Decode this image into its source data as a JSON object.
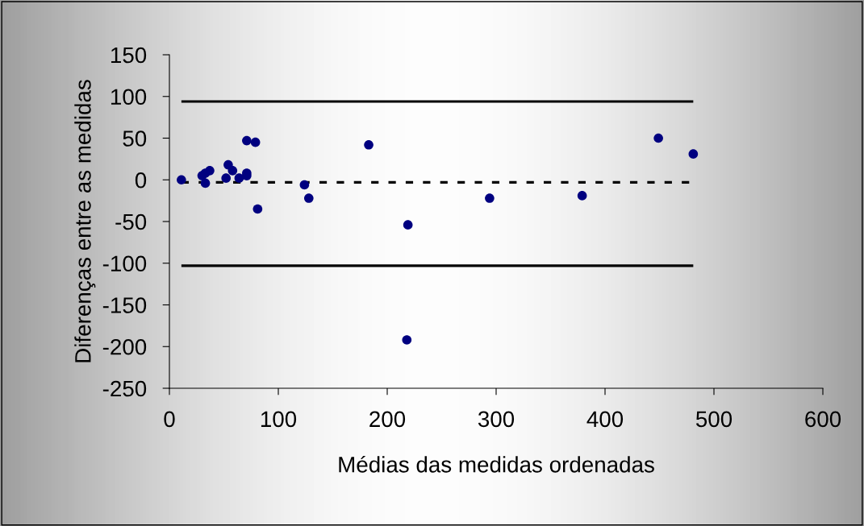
{
  "chart_data": {
    "type": "scatter",
    "xlabel": "Médias das medidas ordenadas",
    "ylabel": "Diferenças entre as medidas",
    "x": [
      11,
      30,
      33,
      37,
      33,
      52,
      54,
      58,
      64,
      71,
      71,
      71,
      79,
      81,
      124,
      128,
      183,
      218,
      219,
      294,
      379,
      449,
      481
    ],
    "series": [
      {
        "color": "#000080",
        "values": [
          0,
          5,
          8,
          11,
          -4,
          2,
          18,
          11,
          2,
          8,
          5,
          47,
          45,
          -35,
          -6,
          -22,
          42,
          -192,
          -54,
          -22,
          -19,
          50,
          31
        ]
      }
    ],
    "marker": "circle",
    "xlim": [
      0,
      600
    ],
    "xticks": [
      0,
      100,
      200,
      300,
      400,
      500,
      600
    ],
    "ylim": [
      -250,
      150
    ],
    "yticks": [
      -250,
      -200,
      -150,
      -100,
      -50,
      0,
      50,
      100,
      150
    ],
    "grid": false,
    "legend": false,
    "ref_lines": [
      {
        "axis": "y",
        "value": 94,
        "color": "#000000",
        "line_style": "solid"
      },
      {
        "axis": "y",
        "value": -103,
        "color": "#000000",
        "line_style": "solid"
      },
      {
        "axis": "y",
        "value": -3,
        "color": "#000000",
        "line_style": "dashed"
      }
    ]
  }
}
